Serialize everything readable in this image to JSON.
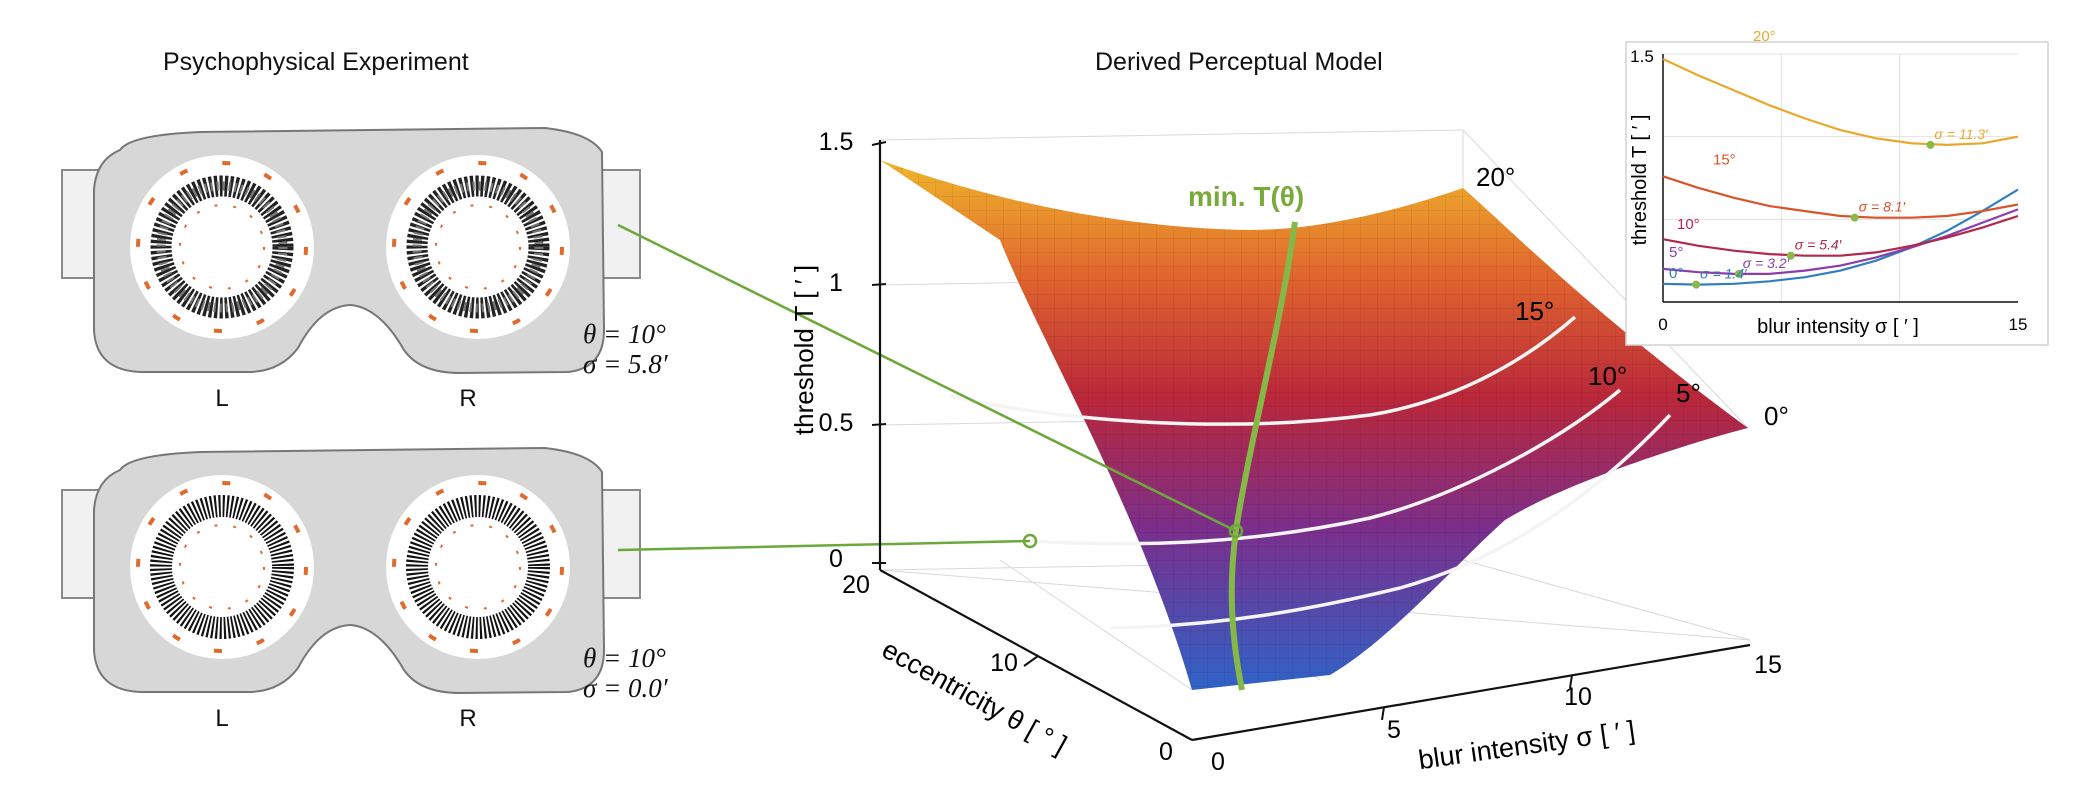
{
  "experiment": {
    "title": "Psychophysical Experiment",
    "trials": [
      {
        "theta": "θ = 10°",
        "sigma": "σ = 5.8′",
        "left_label": "L",
        "right_label": "R"
      },
      {
        "theta": "θ = 10°",
        "sigma": "σ = 0.0′",
        "left_label": "L",
        "right_label": "R"
      }
    ]
  },
  "model": {
    "title": "Derived Perceptual Model",
    "min_label": "min. T(θ)",
    "z_axis": {
      "label": "threshold T [ ′ ]",
      "ticks": [
        "0",
        "0.5",
        "1",
        "1.5"
      ]
    },
    "eccentricity_axis": {
      "label": "eccentricity θ [ ° ]",
      "ticks": [
        "0",
        "10",
        "20"
      ]
    },
    "blur_axis": {
      "label": "blur intensity σ [ ′ ]",
      "ticks": [
        "0",
        "5",
        "10",
        "15"
      ]
    },
    "iso_labels": [
      "20°",
      "15°",
      "10°",
      "5°",
      "0°"
    ]
  },
  "chart_data": {
    "type": "line",
    "xlabel": "blur intensity σ [ ′ ]",
    "ylabel": "threshold T [ ′ ]",
    "xlim": [
      0,
      15
    ],
    "ylim": [
      0,
      1.5
    ],
    "x_ticks": [
      "0",
      "15"
    ],
    "y_ticks": [
      "1.5"
    ],
    "x": [
      0,
      1.5,
      3,
      4.5,
      6,
      7.5,
      9,
      10.5,
      12,
      13.5,
      15
    ],
    "series": [
      {
        "name": "0°",
        "color": "#2f7fc1",
        "values": [
          0.11,
          0.105,
          0.11,
          0.125,
          0.15,
          0.19,
          0.25,
          0.33,
          0.43,
          0.55,
          0.68
        ],
        "min_sigma": 1.4,
        "min_T": 0.105,
        "min_label": "σ = 1.4′"
      },
      {
        "name": "5°",
        "color": "#8a3fa8",
        "values": [
          0.2,
          0.18,
          0.17,
          0.17,
          0.19,
          0.22,
          0.27,
          0.33,
          0.4,
          0.48,
          0.56
        ],
        "min_sigma": 3.2,
        "min_T": 0.17,
        "min_label": "σ = 3.2′"
      },
      {
        "name": "10°",
        "color": "#b0284d",
        "values": [
          0.38,
          0.34,
          0.31,
          0.29,
          0.28,
          0.28,
          0.3,
          0.34,
          0.39,
          0.45,
          0.52
        ],
        "min_sigma": 5.4,
        "min_T": 0.28,
        "min_label": "σ = 5.4′"
      },
      {
        "name": "15°",
        "color": "#d9542a",
        "values": [
          0.76,
          0.69,
          0.63,
          0.58,
          0.55,
          0.52,
          0.51,
          0.51,
          0.52,
          0.55,
          0.59
        ],
        "min_sigma": 8.1,
        "min_T": 0.51,
        "min_label": "σ = 8.1′"
      },
      {
        "name": "20°",
        "color": "#e8a92b",
        "values": [
          1.47,
          1.37,
          1.28,
          1.19,
          1.11,
          1.04,
          0.99,
          0.96,
          0.95,
          0.96,
          1.0
        ],
        "min_sigma": 11.3,
        "min_T": 0.95,
        "min_label": "σ = 11.3′"
      }
    ]
  }
}
